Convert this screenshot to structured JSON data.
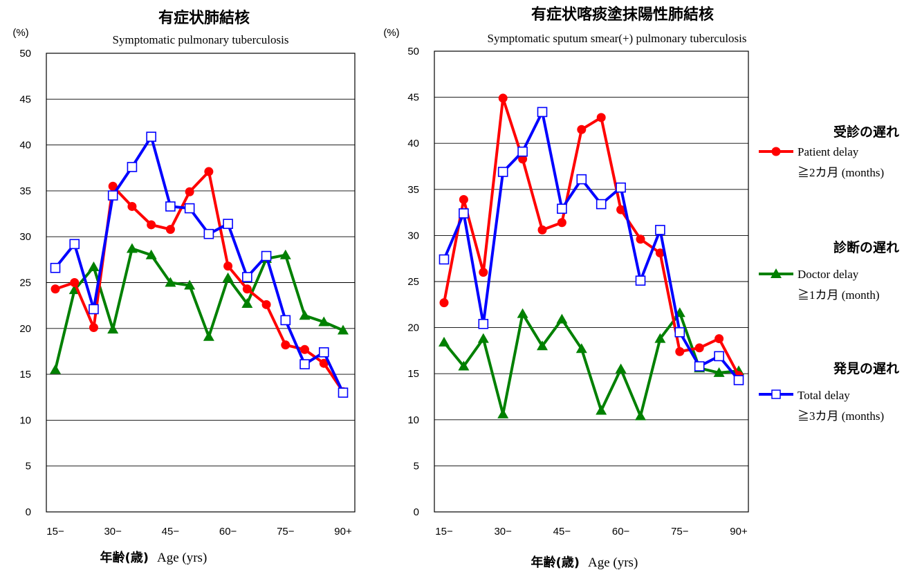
{
  "legend": {
    "items": [
      {
        "jp": "受診の遅れ",
        "en": "Patient delay",
        "threshold": "≧2カ月 (months)",
        "series": "patient",
        "marker": "circle",
        "color": "#ff0000"
      },
      {
        "jp": "診断の遅れ",
        "en": "Doctor delay",
        "threshold": "≧1カ月 (month)",
        "series": "doctor",
        "marker": "triangle",
        "color": "#008000"
      },
      {
        "jp": "発見の遅れ",
        "en": "Total delay",
        "threshold": "≧3カ月 (months)",
        "series": "total",
        "marker": "square",
        "color": "#0000ff"
      }
    ]
  },
  "chart_data": [
    {
      "type": "line",
      "title": "有症状肺結核",
      "subtitle": "Symptomatic pulmonary tuberculosis",
      "y_unit": "(%)",
      "xlabel_jp": "年齢(歳)",
      "xlabel_en": "Age (yrs)",
      "ylim": [
        0,
        50
      ],
      "yticks": [
        "0",
        "5",
        "10",
        "15",
        "20",
        "25",
        "30",
        "35",
        "40",
        "45",
        "50"
      ],
      "x": [
        15,
        20,
        25,
        30,
        35,
        40,
        45,
        50,
        55,
        60,
        65,
        70,
        75,
        80,
        85,
        90
      ],
      "xtick_labels": [
        "15−",
        "30−",
        "45−",
        "60−",
        "75−",
        "90+"
      ],
      "grid": true,
      "series": [
        {
          "key": "patient",
          "color": "#ff0000",
          "marker": "circle",
          "values": [
            24.3,
            25.0,
            20.1,
            35.5,
            33.3,
            31.3,
            30.8,
            34.9,
            37.1,
            26.8,
            24.3,
            22.6,
            18.2,
            17.7,
            16.2,
            13.1
          ]
        },
        {
          "key": "doctor",
          "color": "#008000",
          "marker": "triangle",
          "values": [
            15.5,
            24.2,
            26.7,
            19.9,
            28.7,
            28.0,
            25.0,
            24.7,
            19.1,
            25.5,
            22.7,
            27.6,
            28.0,
            21.4,
            20.7,
            19.8
          ]
        },
        {
          "key": "total",
          "color": "#0000ff",
          "marker": "square",
          "values": [
            26.6,
            29.2,
            22.1,
            34.5,
            37.6,
            40.9,
            33.3,
            33.1,
            30.3,
            31.4,
            25.6,
            27.9,
            20.9,
            16.1,
            17.4,
            13.0
          ]
        }
      ]
    },
    {
      "type": "line",
      "title": "有症状喀痰塗抹陽性肺結核",
      "subtitle": "Symptomatic sputum smear(+) pulmonary  tuberculosis",
      "y_unit": "(%)",
      "xlabel_jp": "年齢(歳)",
      "xlabel_en": "Age (yrs)",
      "ylim": [
        0,
        50
      ],
      "yticks": [
        "0",
        "5",
        "10",
        "15",
        "20",
        "25",
        "30",
        "35",
        "40",
        "45",
        "50"
      ],
      "x": [
        15,
        20,
        25,
        30,
        35,
        40,
        45,
        50,
        55,
        60,
        65,
        70,
        75,
        80,
        85,
        90
      ],
      "xtick_labels": [
        "15−",
        "30−",
        "45−",
        "60−",
        "75−",
        "90+"
      ],
      "grid": true,
      "series": [
        {
          "key": "patient",
          "color": "#ff0000",
          "marker": "circle",
          "values": [
            22.7,
            33.9,
            26.0,
            44.9,
            38.3,
            30.6,
            31.4,
            41.5,
            42.8,
            32.8,
            29.6,
            28.1,
            17.4,
            17.8,
            18.8,
            14.8
          ]
        },
        {
          "key": "doctor",
          "color": "#008000",
          "marker": "triangle",
          "values": [
            18.4,
            15.8,
            18.8,
            10.6,
            21.5,
            18.0,
            20.9,
            17.7,
            11.0,
            15.5,
            10.4,
            18.8,
            21.6,
            15.6,
            15.1,
            15.3
          ]
        },
        {
          "key": "total",
          "color": "#0000ff",
          "marker": "square",
          "values": [
            27.4,
            32.4,
            20.4,
            36.9,
            39.1,
            43.4,
            32.9,
            36.1,
            33.4,
            35.2,
            25.1,
            30.6,
            19.5,
            15.8,
            16.9,
            14.3
          ]
        }
      ]
    }
  ]
}
